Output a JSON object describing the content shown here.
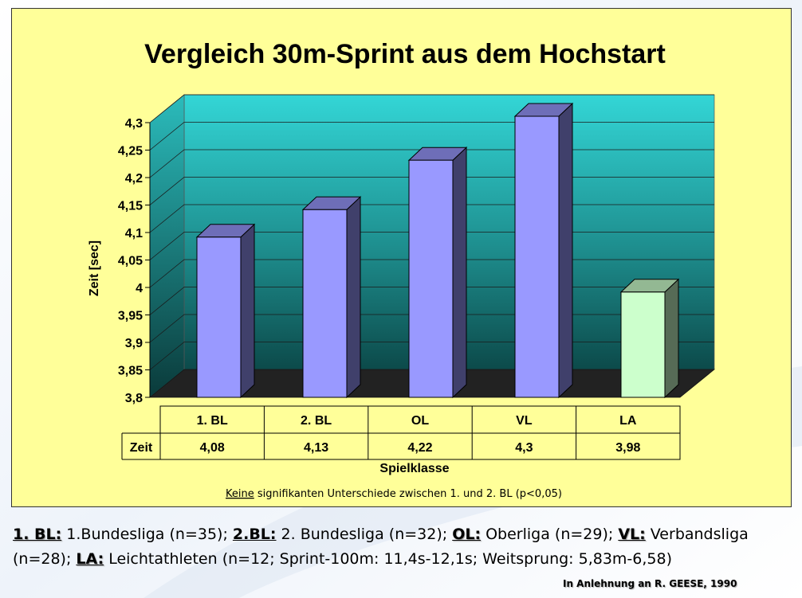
{
  "chart_data": {
    "type": "bar",
    "title": "Vergleich 30m-Sprint aus dem Hochstart",
    "xlabel": "Spielklasse",
    "ylabel": "Zeit [sec]",
    "ylim": [
      3.8,
      4.3
    ],
    "yticks": [
      "3,8",
      "3,85",
      "3,9",
      "3,95",
      "4",
      "4,05",
      "4,1",
      "4,15",
      "4,2",
      "4,25",
      "4,3"
    ],
    "ytick_values": [
      3.8,
      3.85,
      3.9,
      3.95,
      4.0,
      4.05,
      4.1,
      4.15,
      4.2,
      4.25,
      4.3
    ],
    "categories": [
      "1. BL",
      "2. BL",
      "OL",
      "VL",
      "LA"
    ],
    "series": [
      {
        "name": "Zeit",
        "values": [
          4.08,
          4.13,
          4.22,
          4.3,
          3.98
        ],
        "labels": [
          "4,08",
          "4,13",
          "4,22",
          "4,3",
          "3,98"
        ]
      }
    ],
    "bar_colors": [
      "#9999ff",
      "#9999ff",
      "#9999ff",
      "#9999ff",
      "#ccffcc"
    ],
    "grid": true,
    "note_underlined": "Keine",
    "note_rest": " signifikanten Unterschiede zwischen 1. und 2. BL (p<0,05)"
  },
  "legend": {
    "items": [
      {
        "abbr": "1. BL:",
        "text": " 1.Bundesliga (n=35); "
      },
      {
        "abbr": "2.BL:",
        "text": " 2. Bundesliga (n=32); "
      },
      {
        "abbr": "OL:",
        "text": " Oberliga (n=29);  "
      },
      {
        "abbr": "VL:",
        "text": " Verbandsliga (n=28); "
      },
      {
        "abbr": "LA:",
        "text": " Leichtathleten (n=12; Sprint-100m: 11,4s-12,1s;  Weitsprung: 5,83m-6,58)"
      }
    ]
  },
  "credit": "In Anlehnung an R. GEESE, 1990"
}
